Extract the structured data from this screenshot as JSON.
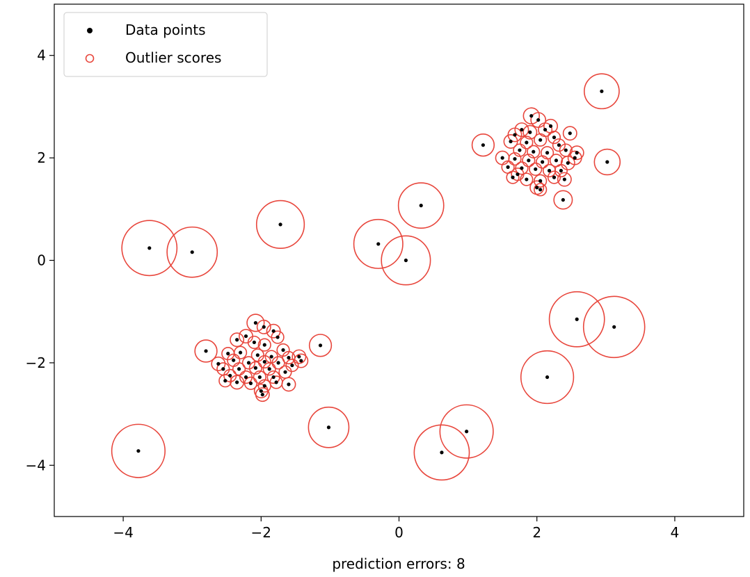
{
  "chart_data": {
    "type": "scatter",
    "title": "",
    "xlabel": "prediction errors: 8",
    "ylabel": "",
    "xlim": [
      -5,
      5
    ],
    "ylim": [
      -5,
      5
    ],
    "xticks": [
      -4,
      -2,
      0,
      2,
      4
    ],
    "yticks": [
      -4,
      -2,
      0,
      2,
      4
    ],
    "grid": false,
    "legend_position": "top-left",
    "colors": {
      "points": "#000000",
      "circles": "#e8463c"
    },
    "series": [
      {
        "name": "Data points",
        "marker": "filled-dot",
        "color": "#000000"
      },
      {
        "name": "Outlier scores",
        "marker": "hollow-circle",
        "color": "#e8463c",
        "note_radius_units": "score as fraction of largest circle"
      }
    ],
    "points": [
      {
        "x": -3.62,
        "y": 0.24,
        "s": 0.9
      },
      {
        "x": -3.0,
        "y": 0.16,
        "s": 0.82
      },
      {
        "x": -1.72,
        "y": 0.7,
        "s": 0.78
      },
      {
        "x": -3.78,
        "y": -3.72,
        "s": 0.87
      },
      {
        "x": -1.02,
        "y": -3.26,
        "s": 0.66
      },
      {
        "x": -2.8,
        "y": -1.77,
        "s": 0.36
      },
      {
        "x": -1.14,
        "y": -1.66,
        "s": 0.36
      },
      {
        "x": -0.3,
        "y": 0.32,
        "s": 0.8
      },
      {
        "x": 0.1,
        "y": 0.0,
        "s": 0.8
      },
      {
        "x": 0.32,
        "y": 1.07,
        "s": 0.74
      },
      {
        "x": 0.62,
        "y": -3.75,
        "s": 0.9
      },
      {
        "x": 0.98,
        "y": -3.34,
        "s": 0.87
      },
      {
        "x": 2.58,
        "y": -1.15,
        "s": 0.9
      },
      {
        "x": 3.12,
        "y": -1.3,
        "s": 1.0
      },
      {
        "x": 2.15,
        "y": -2.28,
        "s": 0.86
      },
      {
        "x": 2.94,
        "y": 3.3,
        "s": 0.57
      },
      {
        "x": 3.02,
        "y": 1.92,
        "s": 0.42
      },
      {
        "x": 1.22,
        "y": 2.25,
        "s": 0.36
      },
      {
        "x": 2.38,
        "y": 1.18,
        "s": 0.3
      },
      {
        "x": -2.08,
        "y": -1.22,
        "s": 0.28
      },
      {
        "x": -1.96,
        "y": -1.3,
        "s": 0.22
      },
      {
        "x": -2.22,
        "y": -1.48,
        "s": 0.22
      },
      {
        "x": -2.35,
        "y": -1.55,
        "s": 0.22
      },
      {
        "x": -1.82,
        "y": -1.38,
        "s": 0.22
      },
      {
        "x": -1.76,
        "y": -1.5,
        "s": 0.2
      },
      {
        "x": -2.1,
        "y": -1.6,
        "s": 0.2
      },
      {
        "x": -1.95,
        "y": -1.65,
        "s": 0.2
      },
      {
        "x": -1.68,
        "y": -1.75,
        "s": 0.2
      },
      {
        "x": -2.48,
        "y": -1.82,
        "s": 0.2
      },
      {
        "x": -2.3,
        "y": -1.8,
        "s": 0.2
      },
      {
        "x": -2.05,
        "y": -1.85,
        "s": 0.2
      },
      {
        "x": -1.85,
        "y": -1.88,
        "s": 0.2
      },
      {
        "x": -1.6,
        "y": -1.9,
        "s": 0.2
      },
      {
        "x": -1.45,
        "y": -1.88,
        "s": 0.22
      },
      {
        "x": -1.42,
        "y": -1.96,
        "s": 0.22
      },
      {
        "x": -1.55,
        "y": -2.05,
        "s": 0.2
      },
      {
        "x": -1.75,
        "y": -2.0,
        "s": 0.2
      },
      {
        "x": -1.95,
        "y": -1.98,
        "s": 0.2
      },
      {
        "x": -2.18,
        "y": -2.0,
        "s": 0.2
      },
      {
        "x": -2.4,
        "y": -1.95,
        "s": 0.2
      },
      {
        "x": -2.62,
        "y": -2.02,
        "s": 0.22
      },
      {
        "x": -2.55,
        "y": -2.12,
        "s": 0.2
      },
      {
        "x": -2.32,
        "y": -2.12,
        "s": 0.2
      },
      {
        "x": -2.08,
        "y": -2.1,
        "s": 0.2
      },
      {
        "x": -1.88,
        "y": -2.12,
        "s": 0.2
      },
      {
        "x": -1.65,
        "y": -2.18,
        "s": 0.2
      },
      {
        "x": -1.82,
        "y": -2.28,
        "s": 0.2
      },
      {
        "x": -2.02,
        "y": -2.28,
        "s": 0.2
      },
      {
        "x": -2.22,
        "y": -2.28,
        "s": 0.2
      },
      {
        "x": -2.45,
        "y": -2.25,
        "s": 0.2
      },
      {
        "x": -2.35,
        "y": -2.38,
        "s": 0.22
      },
      {
        "x": -2.15,
        "y": -2.4,
        "s": 0.2
      },
      {
        "x": -1.95,
        "y": -2.45,
        "s": 0.2
      },
      {
        "x": -1.78,
        "y": -2.38,
        "s": 0.2
      },
      {
        "x": -1.6,
        "y": -2.42,
        "s": 0.22
      },
      {
        "x": -2.0,
        "y": -2.55,
        "s": 0.22
      },
      {
        "x": -1.98,
        "y": -2.62,
        "s": 0.22
      },
      {
        "x": -2.52,
        "y": -2.35,
        "s": 0.2
      },
      {
        "x": 1.92,
        "y": 2.82,
        "s": 0.26
      },
      {
        "x": 2.02,
        "y": 2.74,
        "s": 0.24
      },
      {
        "x": 1.78,
        "y": 2.55,
        "s": 0.22
      },
      {
        "x": 1.68,
        "y": 2.45,
        "s": 0.22
      },
      {
        "x": 1.9,
        "y": 2.5,
        "s": 0.22
      },
      {
        "x": 2.12,
        "y": 2.55,
        "s": 0.22
      },
      {
        "x": 2.2,
        "y": 2.62,
        "s": 0.22
      },
      {
        "x": 2.48,
        "y": 2.48,
        "s": 0.22
      },
      {
        "x": 1.62,
        "y": 2.32,
        "s": 0.22
      },
      {
        "x": 1.85,
        "y": 2.3,
        "s": 0.2
      },
      {
        "x": 2.05,
        "y": 2.35,
        "s": 0.2
      },
      {
        "x": 2.25,
        "y": 2.4,
        "s": 0.2
      },
      {
        "x": 2.32,
        "y": 2.25,
        "s": 0.2
      },
      {
        "x": 1.75,
        "y": 2.15,
        "s": 0.2
      },
      {
        "x": 1.95,
        "y": 2.12,
        "s": 0.2
      },
      {
        "x": 2.15,
        "y": 2.1,
        "s": 0.2
      },
      {
        "x": 2.42,
        "y": 2.15,
        "s": 0.2
      },
      {
        "x": 2.58,
        "y": 2.1,
        "s": 0.22
      },
      {
        "x": 2.55,
        "y": 2.0,
        "s": 0.22
      },
      {
        "x": 1.5,
        "y": 2.0,
        "s": 0.22
      },
      {
        "x": 1.68,
        "y": 1.98,
        "s": 0.2
      },
      {
        "x": 1.88,
        "y": 1.95,
        "s": 0.2
      },
      {
        "x": 2.08,
        "y": 1.92,
        "s": 0.2
      },
      {
        "x": 2.28,
        "y": 1.95,
        "s": 0.2
      },
      {
        "x": 2.45,
        "y": 1.9,
        "s": 0.22
      },
      {
        "x": 1.58,
        "y": 1.82,
        "s": 0.2
      },
      {
        "x": 1.78,
        "y": 1.8,
        "s": 0.2
      },
      {
        "x": 1.98,
        "y": 1.78,
        "s": 0.2
      },
      {
        "x": 2.18,
        "y": 1.75,
        "s": 0.2
      },
      {
        "x": 2.35,
        "y": 1.75,
        "s": 0.2
      },
      {
        "x": 1.65,
        "y": 1.62,
        "s": 0.2
      },
      {
        "x": 1.85,
        "y": 1.58,
        "s": 0.2
      },
      {
        "x": 2.05,
        "y": 1.55,
        "s": 0.2
      },
      {
        "x": 2.25,
        "y": 1.62,
        "s": 0.2
      },
      {
        "x": 2.4,
        "y": 1.58,
        "s": 0.22
      },
      {
        "x": 2.0,
        "y": 1.42,
        "s": 0.22
      },
      {
        "x": 2.05,
        "y": 1.38,
        "s": 0.2
      },
      {
        "x": 1.72,
        "y": 1.68,
        "s": 0.2
      }
    ]
  }
}
